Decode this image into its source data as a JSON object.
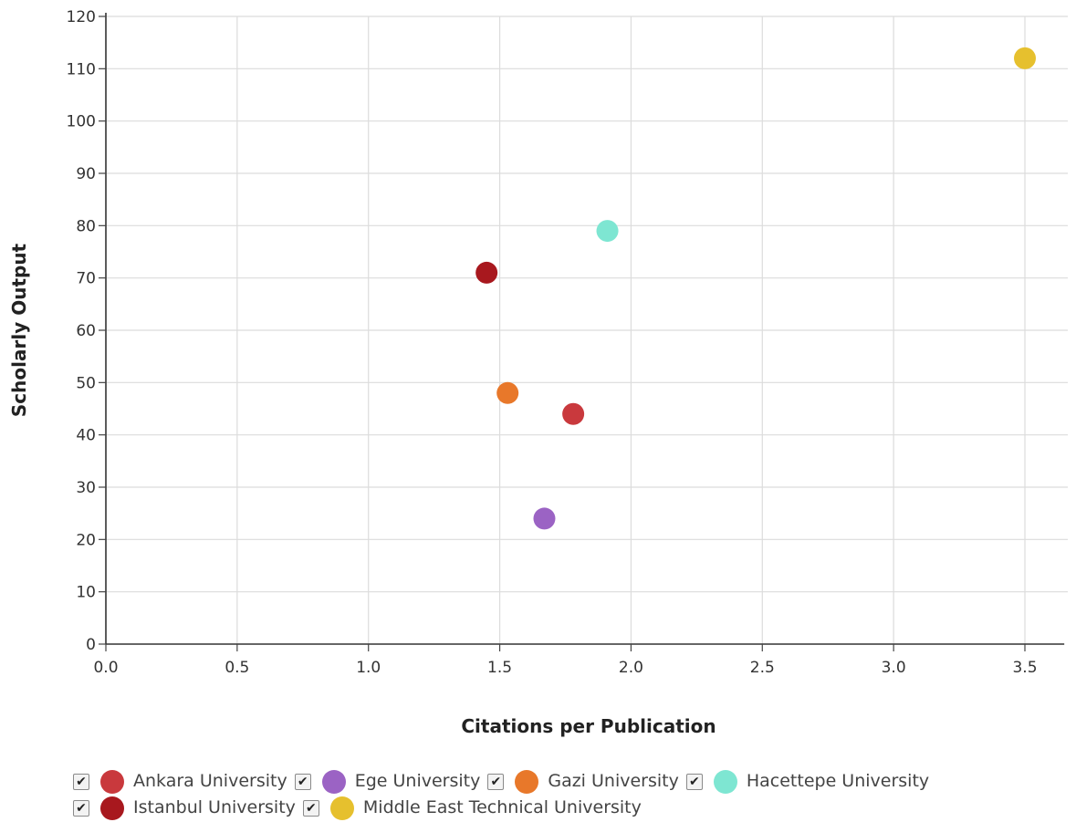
{
  "chart_data": {
    "type": "scatter",
    "title": "",
    "xlabel": "Citations per Publication",
    "ylabel": "Scholarly Output",
    "xlim": [
      0,
      3.65
    ],
    "ylim": [
      0,
      120
    ],
    "x_ticks": [
      "0.0",
      "0.5",
      "1.0",
      "1.5",
      "2.0",
      "2.5",
      "3.0",
      "3.5"
    ],
    "y_ticks": [
      "0",
      "10",
      "20",
      "30",
      "40",
      "50",
      "60",
      "70",
      "80",
      "90",
      "100",
      "110",
      "120"
    ],
    "grid": true,
    "legend_position": "bottom",
    "series": [
      {
        "name": "Ankara University",
        "color": "#c9393d",
        "x": 1.78,
        "y": 44,
        "checked": true
      },
      {
        "name": "Ege University",
        "color": "#9b63c4",
        "x": 1.67,
        "y": 24,
        "checked": true
      },
      {
        "name": "Gazi University",
        "color": "#e8782a",
        "x": 1.53,
        "y": 48,
        "checked": true
      },
      {
        "name": "Hacettepe University",
        "color": "#7ee6d2",
        "x": 1.91,
        "y": 79,
        "checked": true
      },
      {
        "name": "Istanbul University",
        "color": "#a8181e",
        "x": 1.45,
        "y": 71,
        "checked": true
      },
      {
        "name": "Middle East Technical University",
        "color": "#e6c02e",
        "x": 3.5,
        "y": 112,
        "checked": true
      }
    ]
  }
}
